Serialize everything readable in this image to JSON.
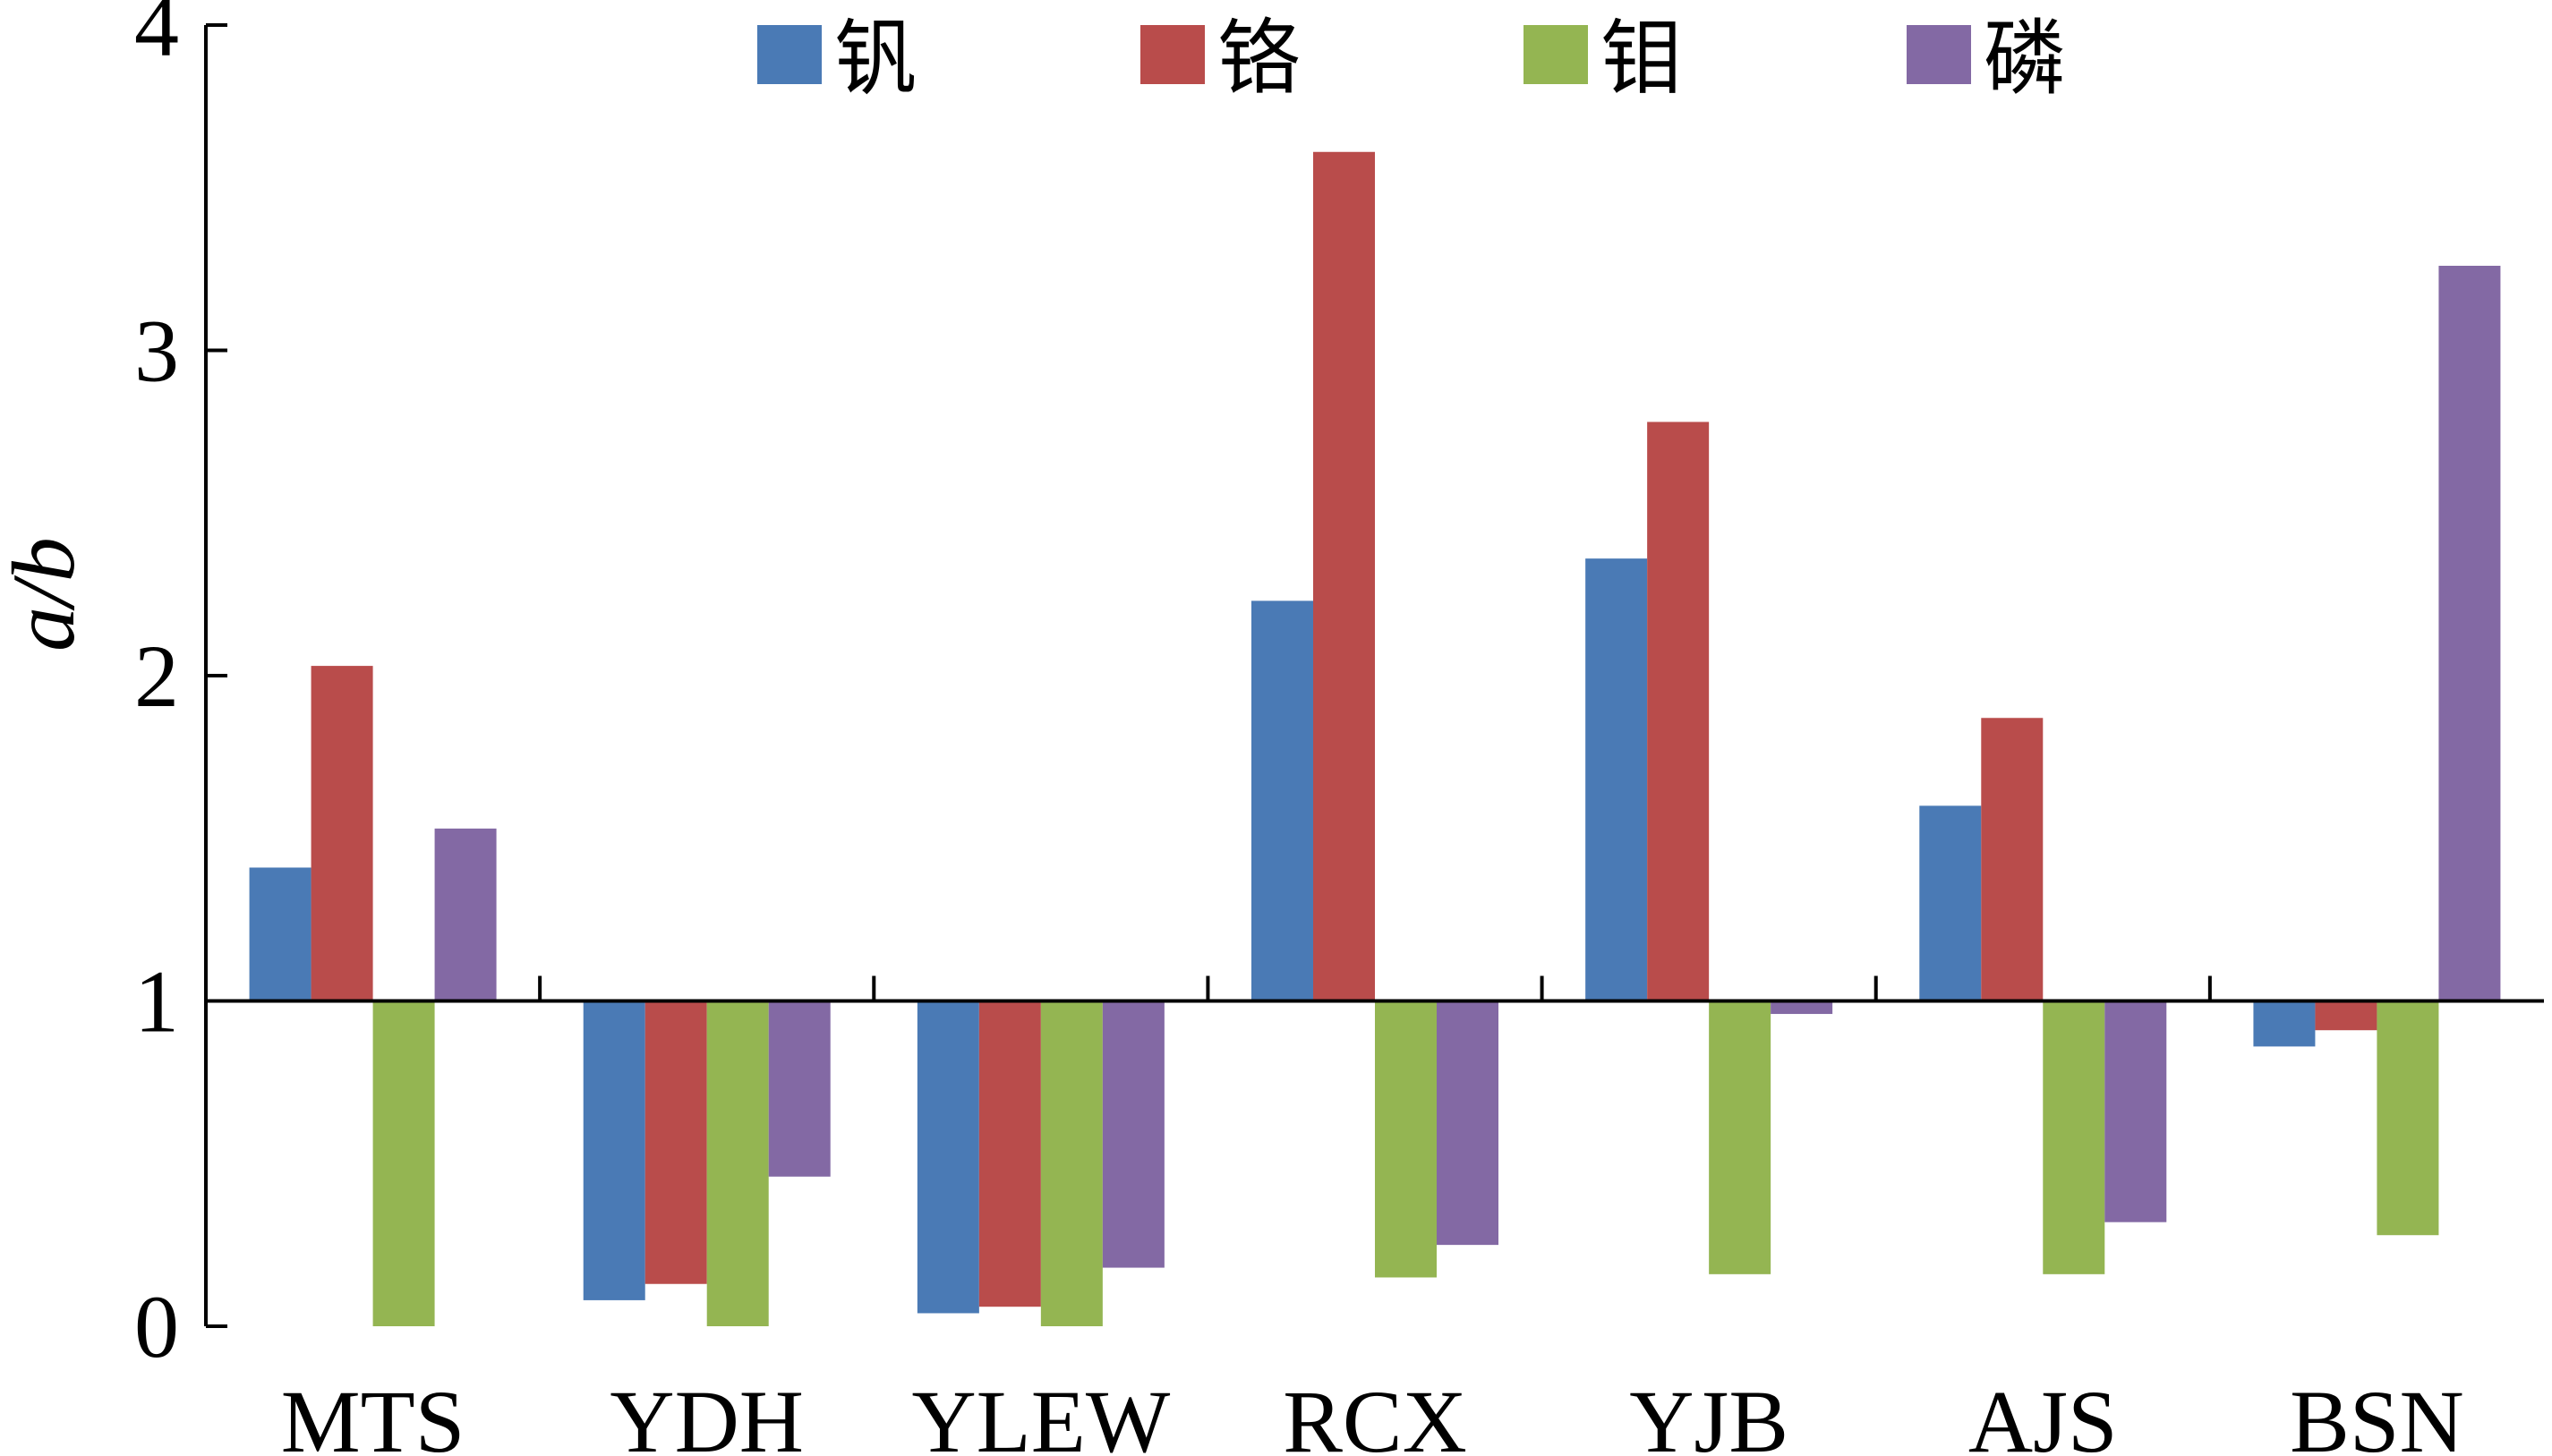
{
  "chart_data": {
    "type": "bar",
    "title": "",
    "xlabel": "",
    "ylabel": "a/b",
    "ylim": [
      0,
      4
    ],
    "yticks": [
      0,
      1,
      2,
      3,
      4
    ],
    "baseline": 1,
    "grid": false,
    "legend_position": "top",
    "categories": [
      "MTS",
      "YDH",
      "YLEW",
      "RCX",
      "YJB",
      "AJS",
      "BSN"
    ],
    "series": [
      {
        "name": "钒",
        "color": "#4a7ab5",
        "values": [
          1.41,
          0.08,
          0.04,
          2.23,
          2.36,
          1.6,
          0.86
        ]
      },
      {
        "name": "铬",
        "color": "#b94c4b",
        "values": [
          2.03,
          0.13,
          0.06,
          3.61,
          2.78,
          1.87,
          0.91
        ]
      },
      {
        "name": "钼",
        "color": "#94b552",
        "values": [
          0.0,
          0.0,
          0.0,
          0.15,
          0.16,
          0.16,
          0.28
        ]
      },
      {
        "name": "磷",
        "color": "#8369a4",
        "values": [
          1.53,
          0.46,
          0.18,
          0.25,
          0.96,
          0.32,
          3.26
        ]
      }
    ]
  }
}
